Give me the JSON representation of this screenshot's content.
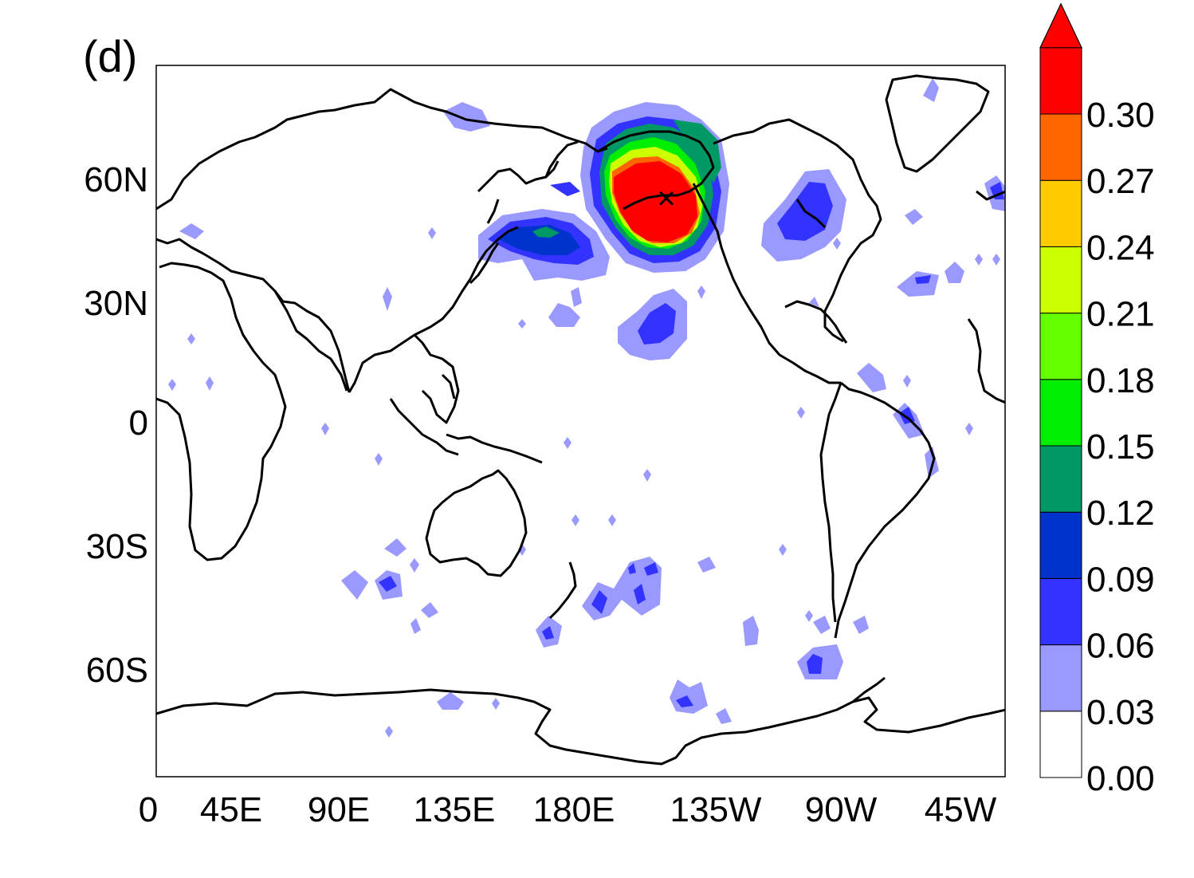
{
  "panel_label": "(d)",
  "axes": {
    "x_ticks": [
      "0",
      "45E",
      "90E",
      "135E",
      "180E",
      "135W",
      "90W",
      "45W"
    ],
    "y_ticks": [
      "60N",
      "30N",
      "0",
      "30S",
      "60S"
    ]
  },
  "colorbar": {
    "levels": [
      "0.00",
      "0.03",
      "0.06",
      "0.09",
      "0.12",
      "0.15",
      "0.18",
      "0.21",
      "0.24",
      "0.27",
      "0.30"
    ],
    "colors": [
      "#ffffff",
      "#9999ff",
      "#3333ff",
      "#0033cc",
      "#009966",
      "#00ee00",
      "#66ff00",
      "#ccff00",
      "#ffcc00",
      "#ff6600",
      "#ff0000"
    ],
    "extend_color": "#ff0000"
  },
  "marker": {
    "symbol": "×",
    "lon": 205,
    "lat": 54
  }
}
